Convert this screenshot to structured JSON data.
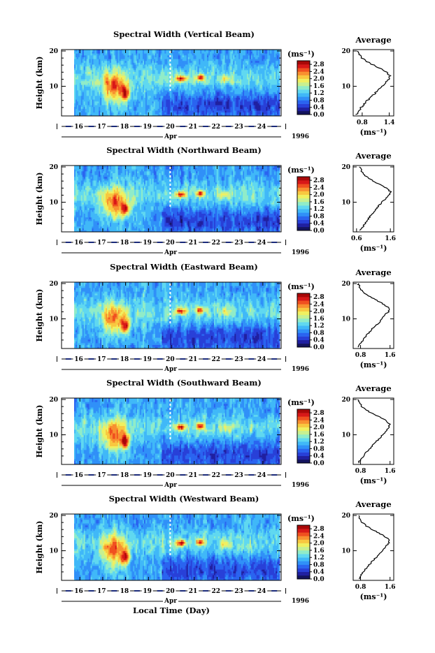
{
  "figure": {
    "bottom_label": "Local Time (Day)",
    "year": "1996",
    "month": "Apr",
    "height_label": "Height (km)",
    "avg_title": "Average",
    "unit": "(ms⁻¹)",
    "colors": [
      "#14145e",
      "#2020a0",
      "#2840d8",
      "#2a64f0",
      "#3090f8",
      "#40b8f8",
      "#60d8f0",
      "#90ecc8",
      "#c8f090",
      "#f0f060",
      "#f8c840",
      "#f89030",
      "#f05020",
      "#d81818",
      "#a80808"
    ]
  },
  "chart_data": [
    {
      "type": "heatmap",
      "title": "Spectral Width (Vertical Beam)",
      "ylabel": "Height (km)",
      "xlabel": "Local Time (Day)",
      "x_ticks": [
        "16",
        "17",
        "18",
        "19",
        "20",
        "21",
        "22",
        "23",
        "24"
      ],
      "y_ticks": [
        "10",
        "20"
      ],
      "ylim": [
        2,
        20
      ],
      "colorbar": {
        "label": "(ms⁻¹)",
        "ticks": [
          "0.0",
          "0.4",
          "0.8",
          "1.2",
          "1.6",
          "2.0",
          "2.4",
          "2.8"
        ],
        "range": [
          0,
          3.0
        ]
      },
      "average_profile": {
        "title": "Average",
        "xlabel": "(ms⁻¹)",
        "x_ticks": [
          "0.8",
          "1.4"
        ],
        "y_ticks": [
          "10",
          "20"
        ],
        "xlim": [
          0.6,
          1.5
        ],
        "heights": [
          2,
          3,
          4,
          5,
          6,
          7,
          8,
          9,
          10,
          11,
          12,
          13,
          14,
          15,
          16,
          17,
          18,
          19,
          20
        ],
        "values": [
          0.68,
          0.72,
          0.78,
          0.84,
          0.92,
          1.0,
          1.08,
          1.16,
          1.24,
          1.32,
          1.4,
          1.42,
          1.33,
          1.2,
          1.05,
          0.9,
          0.8,
          0.74,
          0.7
        ]
      }
    },
    {
      "type": "heatmap",
      "title": "Spectral Width (Northward Beam)",
      "ylabel": "Height (km)",
      "xlabel": "Local Time (Day)",
      "x_ticks": [
        "16",
        "17",
        "18",
        "19",
        "20",
        "21",
        "22",
        "23",
        "24"
      ],
      "y_ticks": [
        "10",
        "20"
      ],
      "ylim": [
        2,
        20
      ],
      "colorbar": {
        "label": "(ms⁻¹)",
        "ticks": [
          "0.0",
          "0.4",
          "0.8",
          "1.2",
          "1.6",
          "2.0",
          "2.4",
          "2.8"
        ],
        "range": [
          0,
          3.0
        ]
      },
      "average_profile": {
        "title": "Average",
        "xlabel": "(ms⁻¹)",
        "x_ticks": [
          "0.6",
          "1.6"
        ],
        "y_ticks": [
          "10",
          "20"
        ],
        "xlim": [
          0.5,
          1.7
        ],
        "heights": [
          2,
          3,
          4,
          5,
          6,
          7,
          8,
          9,
          10,
          11,
          12,
          13,
          14,
          15,
          16,
          17,
          18,
          19,
          20
        ],
        "values": [
          0.72,
          0.78,
          0.85,
          0.92,
          1.0,
          1.08,
          1.17,
          1.26,
          1.35,
          1.45,
          1.56,
          1.6,
          1.48,
          1.3,
          1.1,
          0.92,
          0.8,
          0.74,
          0.7
        ]
      }
    },
    {
      "type": "heatmap",
      "title": "Spectral Width (Eastward Beam)",
      "ylabel": "Height (km)",
      "xlabel": "Local Time (Day)",
      "x_ticks": [
        "16",
        "17",
        "18",
        "19",
        "20",
        "21",
        "22",
        "23",
        "24"
      ],
      "y_ticks": [
        "10",
        "20"
      ],
      "ylim": [
        2,
        20
      ],
      "colorbar": {
        "label": "(ms⁻¹)",
        "ticks": [
          "0.0",
          "0.4",
          "0.8",
          "1.2",
          "1.6",
          "2.0",
          "2.4",
          "2.8"
        ],
        "range": [
          0,
          3.0
        ]
      },
      "average_profile": {
        "title": "Average",
        "xlabel": "(ms⁻¹)",
        "x_ticks": [
          "0.8",
          "1.6"
        ],
        "y_ticks": [
          "10",
          "20"
        ],
        "xlim": [
          0.6,
          1.7
        ],
        "heights": [
          2,
          3,
          4,
          5,
          6,
          7,
          8,
          9,
          10,
          11,
          12,
          13,
          14,
          15,
          16,
          17,
          18,
          19,
          20
        ],
        "values": [
          0.74,
          0.8,
          0.87,
          0.94,
          1.02,
          1.1,
          1.2,
          1.3,
          1.38,
          1.46,
          1.55,
          1.58,
          1.45,
          1.28,
          1.1,
          0.94,
          0.84,
          0.78,
          0.74
        ]
      }
    },
    {
      "type": "heatmap",
      "title": "Spectral Width (Southward Beam)",
      "ylabel": "Height (km)",
      "xlabel": "Local Time (Day)",
      "x_ticks": [
        "16",
        "17",
        "18",
        "19",
        "20",
        "21",
        "22",
        "23",
        "24"
      ],
      "y_ticks": [
        "10",
        "20"
      ],
      "ylim": [
        2,
        20
      ],
      "colorbar": {
        "label": "(ms⁻¹)",
        "ticks": [
          "0.0",
          "0.4",
          "0.8",
          "1.2",
          "1.6",
          "2.0",
          "2.4",
          "2.8"
        ],
        "range": [
          0,
          3.0
        ]
      },
      "average_profile": {
        "title": "Average",
        "xlabel": "(ms⁻¹)",
        "x_ticks": [
          "0.8",
          "1.6"
        ],
        "y_ticks": [
          "10",
          "20"
        ],
        "xlim": [
          0.6,
          1.7
        ],
        "heights": [
          2,
          3,
          4,
          5,
          6,
          7,
          8,
          9,
          10,
          11,
          12,
          13,
          14,
          15,
          16,
          17,
          18,
          19,
          20
        ],
        "values": [
          0.74,
          0.8,
          0.88,
          0.96,
          1.04,
          1.12,
          1.22,
          1.32,
          1.4,
          1.48,
          1.56,
          1.6,
          1.5,
          1.32,
          1.12,
          0.96,
          0.84,
          0.78,
          0.74
        ]
      }
    },
    {
      "type": "heatmap",
      "title": "Spectral Width (Westward Beam)",
      "ylabel": "Height (km)",
      "xlabel": "Local Time (Day)",
      "x_ticks": [
        "16",
        "17",
        "18",
        "19",
        "20",
        "21",
        "22",
        "23",
        "24"
      ],
      "y_ticks": [
        "10",
        "20"
      ],
      "ylim": [
        2,
        20
      ],
      "colorbar": {
        "label": "(ms⁻¹)",
        "ticks": [
          "0.0",
          "0.4",
          "0.8",
          "1.2",
          "1.6",
          "2.0",
          "2.4",
          "2.8"
        ],
        "range": [
          0,
          3.0
        ]
      },
      "average_profile": {
        "title": "Average",
        "xlabel": "(ms⁻¹)",
        "x_ticks": [
          "0.8",
          "1.6"
        ],
        "y_ticks": [
          "10",
          "20"
        ],
        "xlim": [
          0.6,
          1.7
        ],
        "heights": [
          2,
          3,
          4,
          5,
          6,
          7,
          8,
          9,
          10,
          11,
          12,
          13,
          14,
          15,
          16,
          17,
          18,
          19,
          20
        ],
        "values": [
          0.74,
          0.8,
          0.88,
          0.95,
          1.03,
          1.12,
          1.21,
          1.3,
          1.38,
          1.46,
          1.55,
          1.58,
          1.46,
          1.3,
          1.12,
          0.96,
          0.84,
          0.78,
          0.74
        ]
      }
    }
  ]
}
